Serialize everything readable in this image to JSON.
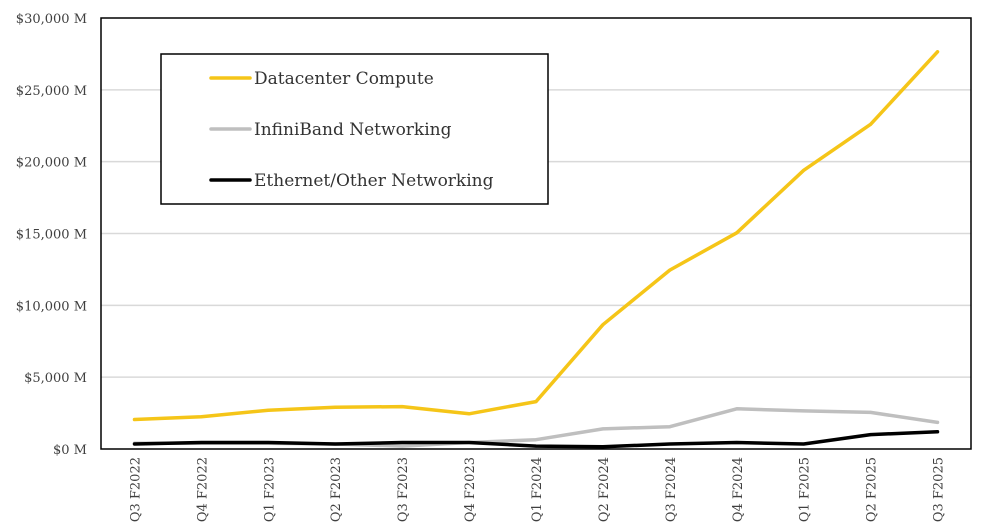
{
  "chart_data": {
    "type": "line",
    "title": "",
    "xlabel": "",
    "ylabel": "",
    "ylim": [
      0,
      30000
    ],
    "y_ticks": [
      {
        "value": 0,
        "label": "$0 M"
      },
      {
        "value": 5000,
        "label": "$5,000 M"
      },
      {
        "value": 10000,
        "label": "$10,000 M"
      },
      {
        "value": 15000,
        "label": "$15,000 M"
      },
      {
        "value": 20000,
        "label": "$20,000 M"
      },
      {
        "value": 25000,
        "label": "$25,000 M"
      },
      {
        "value": 30000,
        "label": "$30,000 M"
      }
    ],
    "grid": true,
    "legend_position": "top-left",
    "categories": [
      "Q3 F2022",
      "Q4 F2022",
      "Q1 F2023",
      "Q2 F2023",
      "Q3 F2023",
      "Q4 F2023",
      "Q1 F2024",
      "Q2 F2024",
      "Q3 F2024",
      "Q4 F2024",
      "Q1 F2025",
      "Q2 F2025",
      "Q3 F2025"
    ],
    "series": [
      {
        "name": "Datacenter Compute",
        "color": "#f5c518",
        "values": [
          2050,
          2250,
          2700,
          2900,
          2950,
          2450,
          3300,
          8650,
          12450,
          15050,
          19400,
          22600,
          27650
        ]
      },
      {
        "name": "InfiniBand Networking",
        "color": "#bfbfbf",
        "values": [
          400,
          400,
          400,
          350,
          200,
          450,
          650,
          1400,
          1550,
          2800,
          2650,
          2550,
          1850
        ]
      },
      {
        "name": "Ethernet/Other Networking",
        "color": "#000000",
        "values": [
          350,
          450,
          450,
          350,
          450,
          450,
          200,
          150,
          350,
          450,
          350,
          1000,
          1200
        ]
      }
    ]
  }
}
